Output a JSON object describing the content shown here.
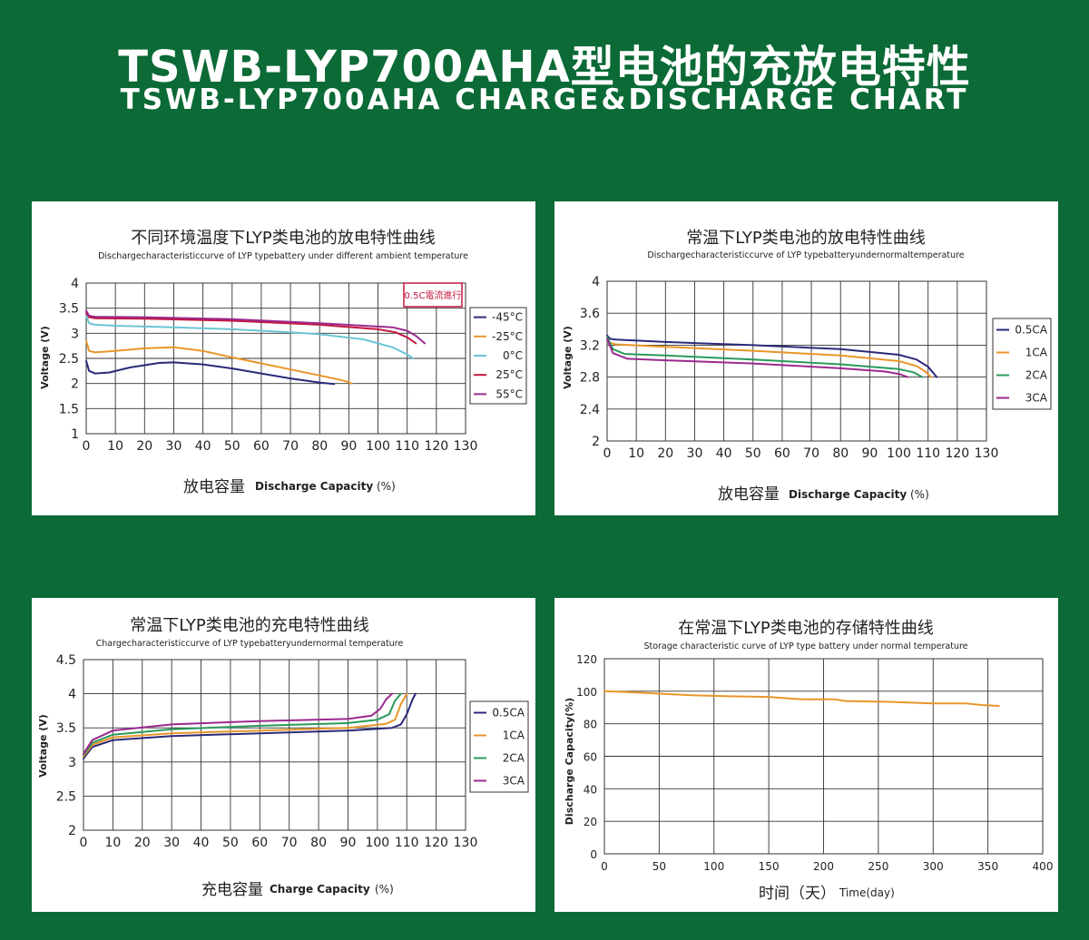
{
  "header": {
    "title_cn": "TSWB-LYP700AHA型电池的充放电特性",
    "title_en": "TSWB-LYP700AHA CHARGE&DISCHARGE CHART"
  },
  "colors": {
    "background": "#0b6a36",
    "panel": "#ffffff",
    "navy": "#2b2a7a",
    "orange": "#e8962a",
    "cyan": "#6cc4d4",
    "crimson": "#c4163f",
    "purple": "#9b2a8e",
    "green": "#2a9a5a",
    "storage": "#e8962a"
  },
  "chart_data": [
    {
      "type": "line",
      "title": "不同环境温度下LYP类电池的放电特性曲线",
      "subtitle": "Dischargecharacteristiccurve of LYP typebattery under different ambient temperature",
      "ylabel": "Voltage (V)",
      "xlabel_cn": "放电容量",
      "xlabel_en": "Discharge Capacity",
      "xlabel_unit": "(%)",
      "xlim": [
        0,
        130
      ],
      "ylim": [
        1,
        4
      ],
      "xticks": [
        0,
        10,
        20,
        30,
        40,
        50,
        60,
        70,
        80,
        90,
        100,
        110,
        120,
        130
      ],
      "yticks": [
        1,
        1.5,
        2,
        2.5,
        3,
        3.5,
        4
      ],
      "ytick_labels": [
        "1",
        "1.5",
        "2",
        "2.5",
        "3",
        "3.5",
        "4"
      ],
      "grid": true,
      "legend_position": "right",
      "annotation": "0.5C電流進行",
      "series": [
        {
          "name": "-45°C",
          "color": "#2b2a7a",
          "x": [
            0,
            1,
            3,
            8,
            15,
            25,
            30,
            40,
            50,
            60,
            70,
            80,
            85
          ],
          "y": [
            2.45,
            2.25,
            2.2,
            2.22,
            2.32,
            2.41,
            2.42,
            2.38,
            2.3,
            2.2,
            2.1,
            2.02,
            1.99
          ]
        },
        {
          "name": "-25°C",
          "color": "#e8962a",
          "x": [
            0,
            1,
            3,
            10,
            20,
            30,
            40,
            50,
            60,
            70,
            80,
            88,
            91
          ],
          "y": [
            2.85,
            2.65,
            2.62,
            2.65,
            2.7,
            2.72,
            2.65,
            2.52,
            2.4,
            2.28,
            2.16,
            2.06,
            2.0
          ]
        },
        {
          "name": "0°C",
          "color": "#6cc4d4",
          "x": [
            0,
            1,
            3,
            10,
            30,
            50,
            70,
            80,
            95,
            105,
            110,
            112
          ],
          "y": [
            3.35,
            3.2,
            3.17,
            3.15,
            3.12,
            3.08,
            3.02,
            2.98,
            2.88,
            2.72,
            2.58,
            2.5
          ]
        },
        {
          "name": "25°C",
          "color": "#c4163f",
          "x": [
            0,
            1,
            3,
            20,
            50,
            80,
            100,
            106,
            110,
            113
          ],
          "y": [
            3.4,
            3.32,
            3.3,
            3.29,
            3.25,
            3.17,
            3.08,
            3.02,
            2.92,
            2.8
          ]
        },
        {
          "name": "55°C",
          "color": "#9b2a8e",
          "x": [
            0,
            1,
            3,
            20,
            50,
            80,
            105,
            110,
            113,
            116
          ],
          "y": [
            3.45,
            3.35,
            3.33,
            3.32,
            3.28,
            3.2,
            3.12,
            3.05,
            2.95,
            2.8
          ]
        }
      ]
    },
    {
      "type": "line",
      "title": "常温下LYP类电池的放电特性曲线",
      "subtitle": "Dischargecharacteristiccurve of LYP typebatteryundernormaltemperature",
      "ylabel": "Voltage (V)",
      "xlabel_cn": "放电容量",
      "xlabel_en": "Discharge Capacity",
      "xlabel_unit": "(%)",
      "xlim": [
        0,
        130
      ],
      "ylim": [
        2,
        4
      ],
      "xticks": [
        0,
        10,
        20,
        30,
        40,
        50,
        60,
        70,
        80,
        90,
        100,
        110,
        120,
        130
      ],
      "yticks": [
        2,
        2.4,
        2.8,
        3.2,
        3.6,
        4
      ],
      "ytick_labels": [
        "2",
        "2.4",
        "2.8",
        "3.2",
        "3.6",
        "4"
      ],
      "grid": true,
      "legend_position": "right",
      "series": [
        {
          "name": "0.5CA",
          "color": "#2b2a7a",
          "x": [
            0,
            1,
            3,
            20,
            50,
            80,
            100,
            106,
            110,
            113
          ],
          "y": [
            3.32,
            3.28,
            3.27,
            3.24,
            3.2,
            3.15,
            3.08,
            3.02,
            2.93,
            2.8
          ]
        },
        {
          "name": "1CA",
          "color": "#e8962a",
          "x": [
            0,
            1,
            3,
            20,
            50,
            80,
            100,
            106,
            109,
            111
          ],
          "y": [
            3.3,
            3.23,
            3.21,
            3.18,
            3.13,
            3.07,
            3.0,
            2.94,
            2.87,
            2.8
          ]
        },
        {
          "name": "2CA",
          "color": "#2a9a5a",
          "x": [
            0,
            2,
            6,
            20,
            50,
            80,
            100,
            105,
            108
          ],
          "y": [
            3.3,
            3.15,
            3.09,
            3.07,
            3.02,
            2.96,
            2.9,
            2.86,
            2.8
          ]
        },
        {
          "name": "3CA",
          "color": "#9b2a8e",
          "x": [
            0,
            2,
            7,
            20,
            50,
            80,
            95,
            100,
            103
          ],
          "y": [
            3.28,
            3.1,
            3.03,
            3.01,
            2.97,
            2.91,
            2.87,
            2.84,
            2.8
          ]
        }
      ]
    },
    {
      "type": "line",
      "title": "常温下LYP类电池的充电特性曲线",
      "subtitle": "Chargecharacteristiccurve of LYP typebatteryundernormal temperature",
      "ylabel": "Voltage (V)",
      "xlabel_cn": "充电容量",
      "xlabel_en": "Charge Capacity",
      "xlabel_unit": "(%)",
      "xlim": [
        0,
        130
      ],
      "ylim": [
        2,
        4.5
      ],
      "xticks": [
        0,
        10,
        20,
        30,
        40,
        50,
        60,
        70,
        80,
        90,
        100,
        110,
        120,
        130
      ],
      "yticks": [
        2,
        2.5,
        3,
        3.5,
        4,
        4.5
      ],
      "ytick_labels": [
        "2",
        "2.5",
        "3",
        "3.5",
        "4",
        "4.5"
      ],
      "grid": true,
      "legend_position": "right",
      "series": [
        {
          "name": "0.5CA",
          "color": "#2b2a7a",
          "x": [
            0,
            3,
            10,
            30,
            60,
            90,
            105,
            108,
            110,
            112,
            113
          ],
          "y": [
            3.05,
            3.22,
            3.32,
            3.38,
            3.42,
            3.46,
            3.5,
            3.55,
            3.7,
            3.92,
            4.0
          ]
        },
        {
          "name": "1CA",
          "color": "#e8962a",
          "x": [
            0,
            3,
            10,
            30,
            60,
            90,
            103,
            106,
            108,
            110
          ],
          "y": [
            3.08,
            3.25,
            3.36,
            3.42,
            3.46,
            3.5,
            3.56,
            3.62,
            3.85,
            4.0
          ]
        },
        {
          "name": "2CA",
          "color": "#2a9a5a",
          "x": [
            0,
            3,
            10,
            30,
            60,
            90,
            100,
            104,
            106,
            108
          ],
          "y": [
            3.1,
            3.28,
            3.4,
            3.48,
            3.53,
            3.57,
            3.62,
            3.7,
            3.9,
            4.0
          ]
        },
        {
          "name": "3CA",
          "color": "#9b2a8e",
          "x": [
            0,
            3,
            10,
            30,
            60,
            90,
            98,
            101,
            103,
            105
          ],
          "y": [
            3.12,
            3.32,
            3.46,
            3.55,
            3.6,
            3.63,
            3.68,
            3.78,
            3.92,
            4.0
          ]
        }
      ]
    },
    {
      "type": "line",
      "title": "在常温下LYP类电池的存储特性曲线",
      "subtitle": "Storage characteristic curve of  LYP type battery under normal temperature",
      "ylabel": "Discharge Capacity(%)",
      "xlabel_cn": "时间（天）",
      "xlabel_en": "Time(day)",
      "xlabel_unit": "",
      "xlim": [
        0,
        400
      ],
      "ylim": [
        0,
        120
      ],
      "xticks": [
        0,
        50,
        100,
        150,
        200,
        250,
        300,
        350,
        400
      ],
      "yticks": [
        0,
        20,
        40,
        60,
        80,
        100,
        120
      ],
      "ytick_labels": [
        "0",
        "20",
        "40",
        "60",
        "80",
        "100",
        "120"
      ],
      "grid": true,
      "series": [
        {
          "name": "",
          "color": "#e8962a",
          "x": [
            0,
            20,
            50,
            80,
            110,
            150,
            180,
            210,
            220,
            260,
            300,
            330,
            345,
            360
          ],
          "y": [
            100,
            99.5,
            98.5,
            97.5,
            97,
            96.5,
            95,
            95,
            94,
            93.5,
            92.5,
            92.5,
            91.5,
            91
          ]
        }
      ]
    }
  ]
}
